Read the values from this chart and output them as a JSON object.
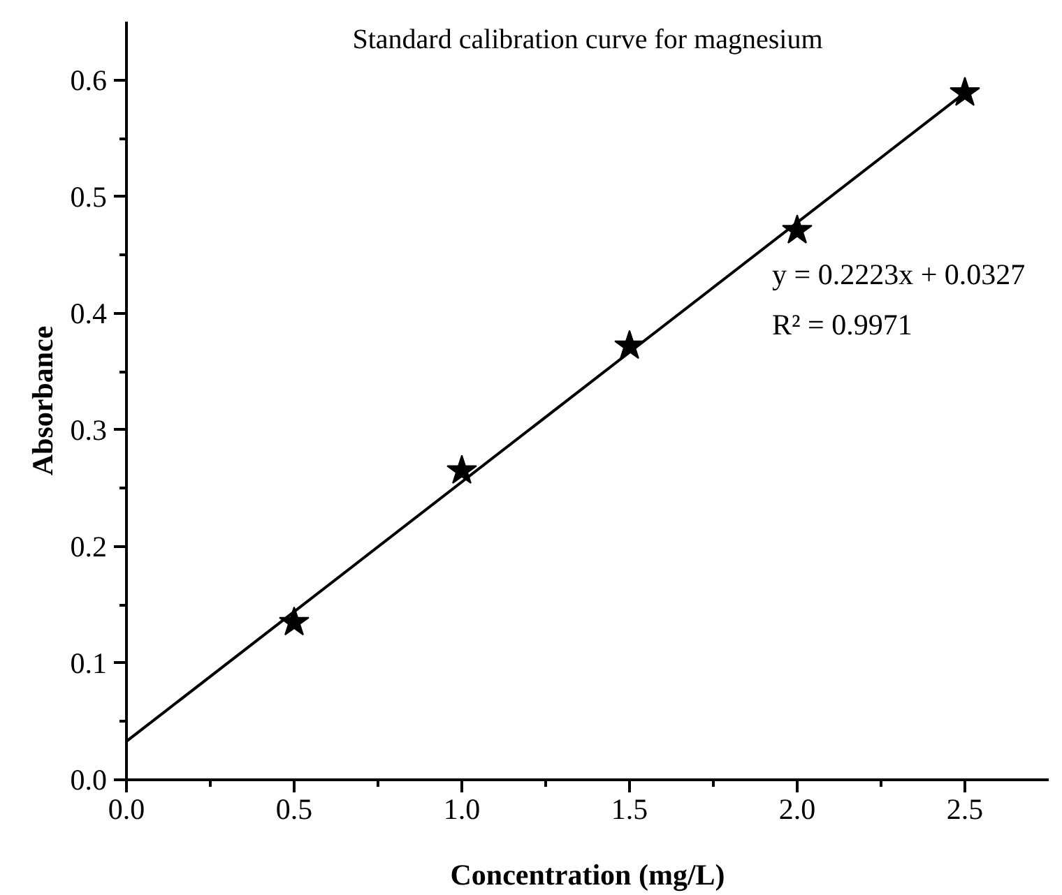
{
  "chart_data": {
    "type": "scatter",
    "title": "Standard calibration curve for magnesium",
    "xlabel": "Concentration (mg/L)",
    "ylabel": "Absorbance",
    "annotations": [
      "y = 0.2223x + 0.0327",
      "R² = 0.9971"
    ],
    "xlim": [
      0,
      2.75
    ],
    "ylim": [
      0,
      0.65
    ],
    "xticks": [
      {
        "value": 0,
        "label": "0.0"
      },
      {
        "value": 0.25,
        "label": null
      },
      {
        "value": 0.5,
        "label": "0.5"
      },
      {
        "value": 0.75,
        "label": null
      },
      {
        "value": 1,
        "label": "1.0"
      },
      {
        "value": 1.25,
        "label": null
      },
      {
        "value": 1.5,
        "label": "1.5"
      },
      {
        "value": 1.75,
        "label": null
      },
      {
        "value": 2,
        "label": "2.0"
      },
      {
        "value": 2.25,
        "label": null
      },
      {
        "value": 2.5,
        "label": "2.5"
      }
    ],
    "yticks": [
      {
        "value": 0,
        "label": "0.0"
      },
      {
        "value": 0.05,
        "label": null
      },
      {
        "value": 0.1,
        "label": "0.1"
      },
      {
        "value": 0.15,
        "label": null
      },
      {
        "value": 0.2,
        "label": "0.2"
      },
      {
        "value": 0.25,
        "label": null
      },
      {
        "value": 0.3,
        "label": "0.3"
      },
      {
        "value": 0.35,
        "label": null
      },
      {
        "value": 0.4,
        "label": "0.4"
      },
      {
        "value": 0.45,
        "label": null
      },
      {
        "value": 0.5,
        "label": "0.5"
      },
      {
        "value": 0.55,
        "label": null
      },
      {
        "value": 0.6,
        "label": "0.6"
      }
    ],
    "grid": false,
    "series": [
      {
        "type": "line",
        "color": "#000000",
        "marker": "none",
        "line_style": "solid",
        "x": [
          0,
          2.5
        ],
        "values": [
          0.033,
          0.589
        ]
      },
      {
        "color": "#000000",
        "marker": "star",
        "x": [
          0.5,
          1.0,
          1.5,
          2.0,
          2.5
        ],
        "values": [
          0.135,
          0.265,
          0.372,
          0.471,
          0.589
        ]
      }
    ]
  }
}
